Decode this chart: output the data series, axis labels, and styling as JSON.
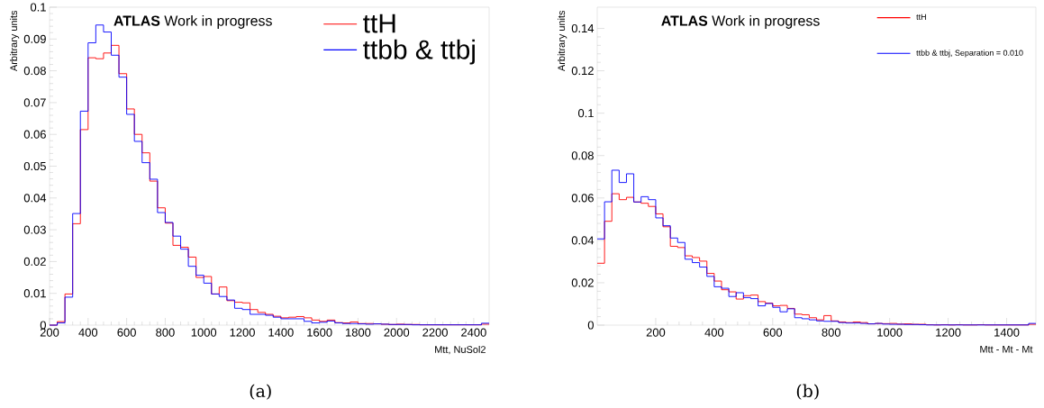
{
  "chart_data": [
    {
      "type": "histogram",
      "xlabel": "Mtt, NuSol2",
      "ylabel": "Arbitrary units",
      "annotations": [
        "**ATLAS** Work in progress",
        "(a)"
      ],
      "bins": [
        200,
        240,
        280,
        320,
        360,
        400,
        440,
        480,
        520,
        560,
        600,
        640,
        680,
        720,
        760,
        800,
        840,
        880,
        920,
        960,
        1000,
        1040,
        1080,
        1120,
        1160,
        1200,
        1240,
        1280,
        1320,
        1360,
        1400,
        1440,
        1480,
        1520,
        1560,
        1600,
        1640,
        1680,
        1720,
        1760,
        1800,
        1840,
        1880,
        1920,
        1960,
        2000,
        2040,
        2080,
        2120,
        2160,
        2200,
        2240,
        2280,
        2320,
        2360,
        2400,
        2440,
        2480
      ],
      "series": [
        {
          "name": "ttH",
          "color": "#ff0000",
          "values": [
            0,
            0.0011,
            0.0098,
            0.0319,
            0.0615,
            0.0841,
            0.0838,
            0.0856,
            0.088,
            0.0791,
            0.068,
            0.06,
            0.0542,
            0.0453,
            0.0369,
            0.0321,
            0.0251,
            0.0245,
            0.0214,
            0.015,
            0.0153,
            0.0098,
            0.012,
            0.0077,
            0.0072,
            0.007,
            0.0049,
            0.004,
            0.0034,
            0.0028,
            0.0023,
            0.0025,
            0.0027,
            0.0023,
            0.0016,
            0.0012,
            0.0016,
            0.0008,
            0.0007,
            0.001,
            0.0005,
            0.0005,
            0.0004,
            0.0003,
            0.0002,
            0.0003,
            0.0002,
            0.0002,
            0.0001,
            0.0001,
            0.0001,
            0.0001,
            0.0001,
            0.0001,
            0.0001,
            0.0001,
            0.0003
          ]
        },
        {
          "name": "ttbb & ttbj",
          "color": "#0000ff",
          "values": [
            0,
            0.0007,
            0.0088,
            0.0351,
            0.0673,
            0.0888,
            0.0944,
            0.0922,
            0.0849,
            0.078,
            0.0663,
            0.0578,
            0.0511,
            0.0459,
            0.0354,
            0.0323,
            0.028,
            0.0239,
            0.0185,
            0.0157,
            0.0132,
            0.0098,
            0.009,
            0.0079,
            0.0053,
            0.0049,
            0.0034,
            0.0034,
            0.0031,
            0.0025,
            0.002,
            0.002,
            0.002,
            0.0012,
            0.0007,
            0.0009,
            0.0013,
            0.0007,
            0.0005,
            0.0005,
            0.0004,
            0.0003,
            0.0004,
            0.0003,
            0.0002,
            0.0002,
            0.0002,
            0.0001,
            0.0001,
            0.0001,
            0.0001,
            0.0001,
            0.0001,
            0.0001,
            0.0001,
            0.0001,
            0.0006
          ]
        }
      ],
      "xlim": [
        200,
        2480
      ],
      "ylim": [
        0,
        0.1
      ],
      "xticks": [
        200,
        400,
        600,
        800,
        1000,
        1200,
        1400,
        1600,
        1800,
        2000,
        2200,
        2400
      ],
      "yticks": [
        0,
        0.01,
        0.02,
        0.03,
        0.04,
        0.05,
        0.06,
        0.07,
        0.08,
        0.09,
        0.1
      ],
      "legend": "top right"
    },
    {
      "type": "histogram",
      "xlabel": "Mtt - Mt - Mt",
      "ylabel": "Arbitrary units",
      "annotations": [
        "**ATLAS** Work in progress",
        "(b)"
      ],
      "bins": [
        0,
        25,
        50,
        75,
        100,
        125,
        150,
        175,
        200,
        225,
        250,
        275,
        300,
        325,
        350,
        375,
        400,
        425,
        450,
        475,
        500,
        525,
        550,
        575,
        600,
        625,
        650,
        675,
        700,
        725,
        750,
        775,
        800,
        825,
        850,
        875,
        900,
        925,
        950,
        975,
        1000,
        1025,
        1050,
        1075,
        1100,
        1125,
        1150,
        1175,
        1200,
        1225,
        1250,
        1275,
        1300,
        1325,
        1350,
        1375,
        1400,
        1425,
        1450,
        1475,
        1500
      ],
      "series": [
        {
          "name": "ttH",
          "color": "#ff0000",
          "values": [
            0.0292,
            0.049,
            0.062,
            0.0592,
            0.0603,
            0.0581,
            0.0575,
            0.056,
            0.0525,
            0.0464,
            0.0372,
            0.0366,
            0.0327,
            0.0319,
            0.0302,
            0.0244,
            0.0208,
            0.0167,
            0.0157,
            0.0123,
            0.0139,
            0.0142,
            0.0111,
            0.0104,
            0.0091,
            0.0093,
            0.0079,
            0.0052,
            0.0049,
            0.0035,
            0.0025,
            0.0045,
            0.002,
            0.0015,
            0.0012,
            0.0015,
            0.0012,
            0.0006,
            0.0008,
            0.0007,
            0.0008,
            0.0005,
            0.0006,
            0.0004,
            0.0004,
            0.0002,
            0.0001,
            0.0002,
            0.0001,
            0.0002,
            0.0001,
            0.0001,
            0.0002,
            0.0001,
            0.0001,
            0.0001,
            0.0001,
            0.0001,
            0.0001,
            0.0004
          ]
        },
        {
          "name": "ttbb & ttbj, Separation = 0.010",
          "color": "#0000ff",
          "values": [
            0.0407,
            0.0582,
            0.0731,
            0.0673,
            0.0714,
            0.0581,
            0.0606,
            0.0592,
            0.0506,
            0.0469,
            0.0411,
            0.039,
            0.0311,
            0.0295,
            0.0274,
            0.023,
            0.0181,
            0.0174,
            0.0135,
            0.0153,
            0.013,
            0.0125,
            0.0091,
            0.0102,
            0.0084,
            0.0063,
            0.0077,
            0.0035,
            0.003,
            0.0025,
            0.002,
            0.0018,
            0.0018,
            0.0012,
            0.001,
            0.001,
            0.0008,
            0.0006,
            0.0008,
            0.0005,
            0.0004,
            0.0004,
            0.0003,
            0.0003,
            0.0002,
            0.0001,
            0.0001,
            0.0001,
            0.0001,
            0.0001,
            0.0001,
            0.0001,
            0.0001,
            0.0001,
            0.0001,
            0.0001,
            0.0001,
            0.0001,
            0.0001,
            0.0008
          ]
        }
      ],
      "xlim": [
        0,
        1500
      ],
      "ylim": [
        0,
        0.15
      ],
      "xticks": [
        200,
        400,
        600,
        800,
        1000,
        1200,
        1400
      ],
      "yticks": [
        0,
        0.02,
        0.04,
        0.06,
        0.08,
        0.1,
        0.12,
        0.14
      ],
      "legend": "top right"
    }
  ]
}
